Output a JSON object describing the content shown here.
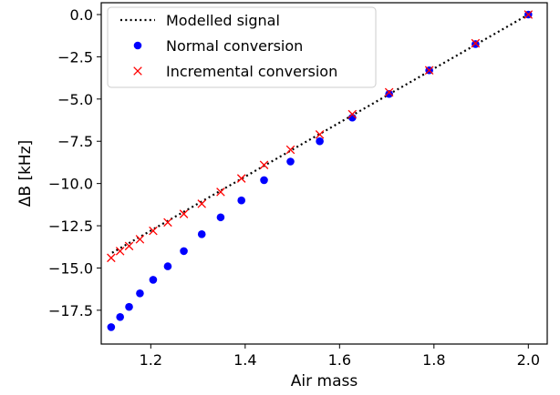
{
  "chart_data": {
    "type": "scatter",
    "title": "",
    "xlabel": "Air mass",
    "ylabel": "ΔB [kHz]",
    "xlim": [
      1.095,
      2.04
    ],
    "ylim": [
      -19.5,
      0.7
    ],
    "xticks": [
      1.2,
      1.4,
      1.6,
      1.8,
      2.0
    ],
    "xtick_labels": [
      "1.2",
      "1.4",
      "1.6",
      "1.8",
      "2.0"
    ],
    "yticks": [
      0.0,
      -2.5,
      -5.0,
      -7.5,
      -10.0,
      -12.5,
      -15.0,
      -17.5
    ],
    "ytick_labels": [
      "0.0",
      "−2.5",
      "−5.0",
      "−7.5",
      "−10.0",
      "−12.5",
      "−15.0",
      "−17.5"
    ],
    "grid": false,
    "legend_position": "top-left",
    "series": [
      {
        "name": "Modelled signal",
        "kind": "line",
        "style": "dotted",
        "color": "#000000",
        "x": [
          1.118,
          2.0
        ],
        "y": [
          -14.1,
          0.0
        ]
      },
      {
        "name": "Normal conversion",
        "kind": "marker",
        "marker": "circle",
        "color": "#0000ff",
        "x": [
          1.116,
          1.135,
          1.154,
          1.177,
          1.205,
          1.236,
          1.27,
          1.308,
          1.348,
          1.392,
          1.44,
          1.496,
          1.558,
          1.627,
          1.705,
          1.79,
          1.888,
          2.0
        ],
        "y": [
          -18.5,
          -17.9,
          -17.3,
          -16.5,
          -15.7,
          -14.9,
          -14.0,
          -13.0,
          -12.0,
          -11.0,
          -9.8,
          -8.7,
          -7.5,
          -6.1,
          -4.7,
          -3.3,
          -1.75,
          0.0
        ]
      },
      {
        "name": "Incremental conversion",
        "kind": "marker",
        "marker": "x",
        "color": "#ff0000",
        "x": [
          1.116,
          1.135,
          1.154,
          1.177,
          1.205,
          1.236,
          1.27,
          1.308,
          1.348,
          1.392,
          1.44,
          1.496,
          1.558,
          1.627,
          1.705,
          1.79,
          1.888,
          2.0
        ],
        "y": [
          -14.4,
          -14.0,
          -13.7,
          -13.3,
          -12.8,
          -12.3,
          -11.8,
          -11.2,
          -10.5,
          -9.7,
          -8.9,
          -8.0,
          -7.1,
          -5.9,
          -4.6,
          -3.3,
          -1.7,
          0.0
        ]
      }
    ]
  }
}
